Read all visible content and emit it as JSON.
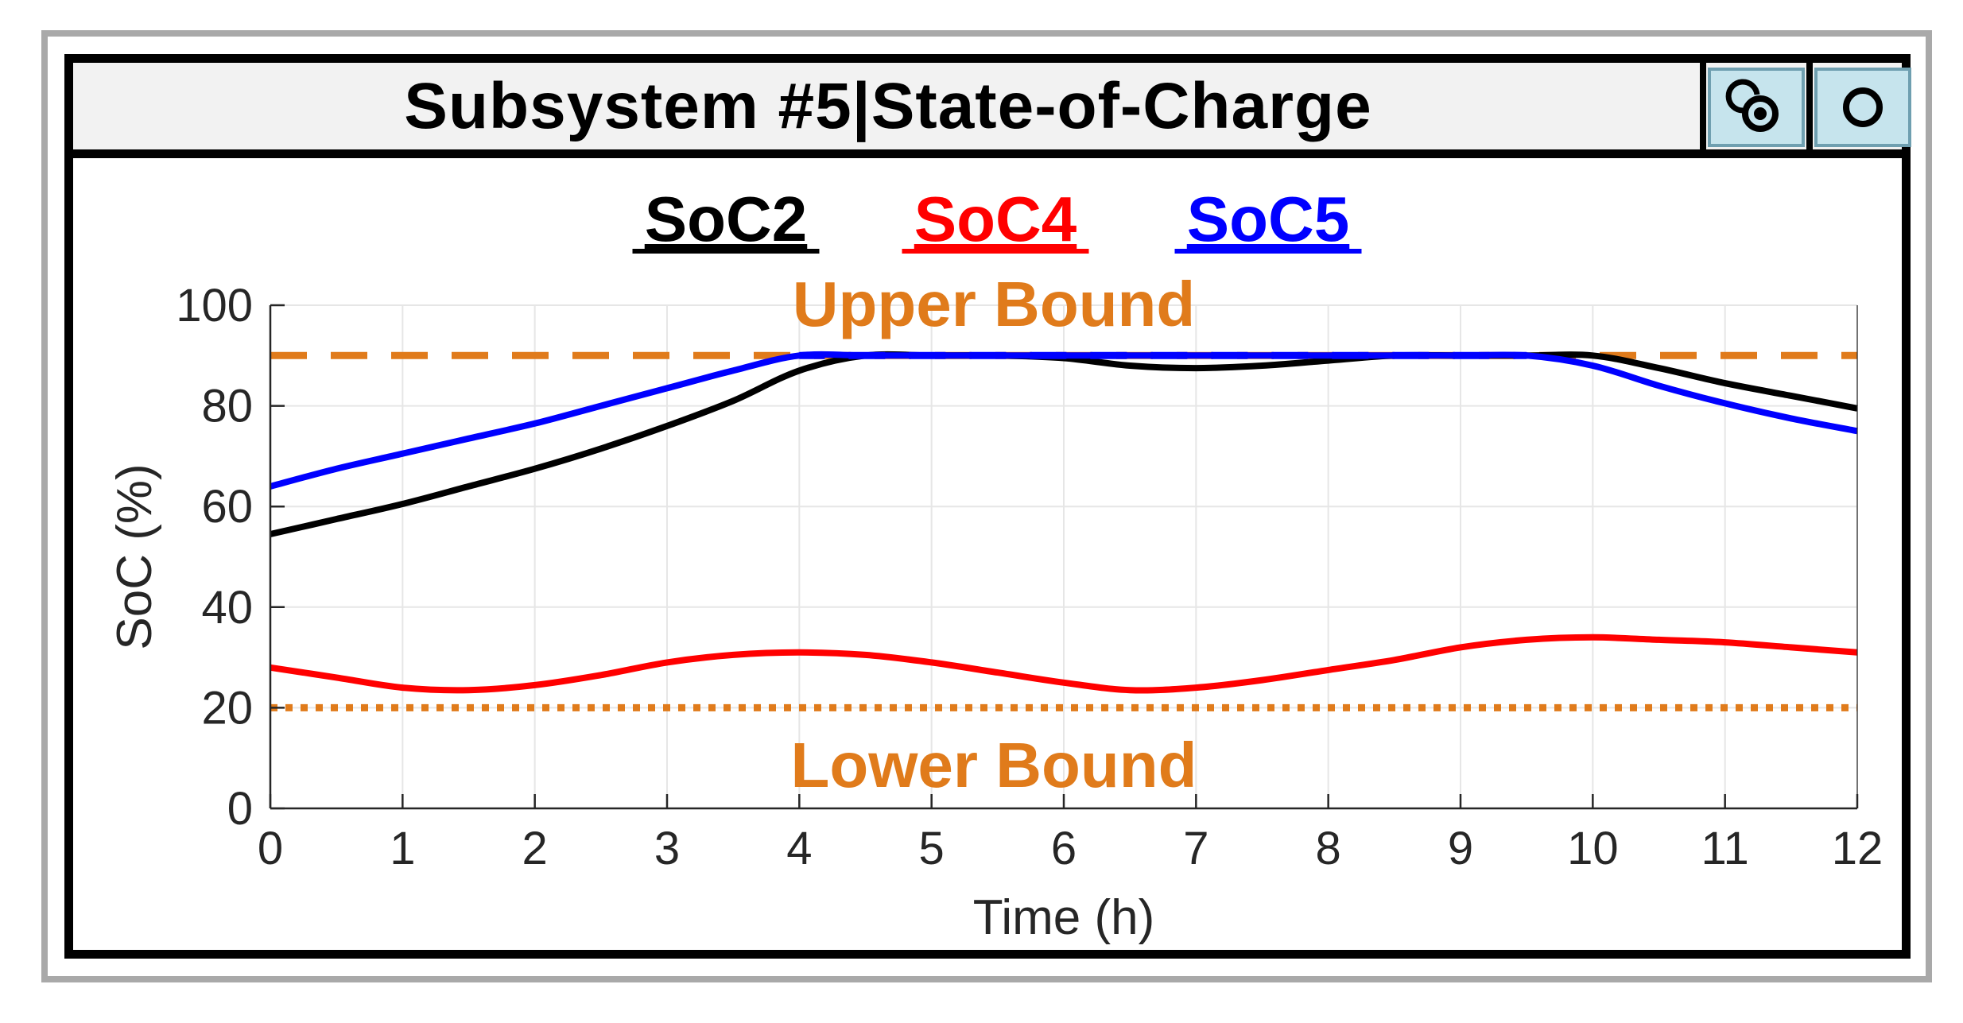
{
  "window": {
    "title": "Subsystem #5|State-of-Charge",
    "buttons": [
      {
        "name": "pin-button",
        "icon": "pin-icon"
      },
      {
        "name": "options-button",
        "icon": "circle-icon"
      }
    ]
  },
  "colors": {
    "soc2": "#000000",
    "soc4": "#ff0000",
    "soc5": "#0000ff",
    "bound": "#e07b1b"
  },
  "chart_data": {
    "type": "line",
    "title": "",
    "xlabel": "Time (h)",
    "ylabel": "SoC (%)",
    "xlim": [
      0,
      12
    ],
    "ylim": [
      0,
      100
    ],
    "xticks": [
      0,
      1,
      2,
      3,
      4,
      5,
      6,
      7,
      8,
      9,
      10,
      11,
      12
    ],
    "yticks": [
      0,
      20,
      40,
      60,
      80,
      100
    ],
    "grid": true,
    "legend_position": "top-center",
    "x": [
      0,
      0.5,
      1,
      1.5,
      2,
      2.5,
      3,
      3.5,
      4,
      4.5,
      5,
      5.5,
      6,
      6.5,
      7,
      7.5,
      8,
      8.5,
      9,
      9.5,
      10,
      10.5,
      11,
      11.5,
      12
    ],
    "series": [
      {
        "name": "SoC2",
        "color": "#000000",
        "style": "solid",
        "values": [
          54.5,
          57.5,
          60.5,
          64,
          67.5,
          71.5,
          76,
          81,
          87,
          90,
          90,
          90,
          89.5,
          88,
          87.5,
          88,
          89,
          90,
          90,
          90,
          90,
          87.5,
          84.5,
          82,
          79.5
        ]
      },
      {
        "name": "SoC4",
        "color": "#ff0000",
        "style": "solid",
        "values": [
          28,
          26,
          24,
          23.5,
          24.5,
          26.5,
          29,
          30.5,
          31,
          30.5,
          29,
          27,
          25,
          23.5,
          24,
          25.5,
          27.5,
          29.5,
          32,
          33.5,
          34,
          33.5,
          33,
          32,
          31
        ]
      },
      {
        "name": "SoC5",
        "color": "#0000ff",
        "style": "solid",
        "values": [
          64,
          67.5,
          70.5,
          73.5,
          76.5,
          80,
          83.5,
          87,
          90,
          90,
          90,
          90,
          90,
          90,
          90,
          90,
          90,
          90,
          90,
          90,
          88,
          84,
          80.5,
          77.5,
          75
        ]
      }
    ],
    "bounds": [
      {
        "label": "Upper Bound",
        "value": 90,
        "style": "dashed",
        "color": "#e07b1b"
      },
      {
        "label": "Lower Bound",
        "value": 20,
        "style": "dotted",
        "color": "#e07b1b"
      }
    ]
  }
}
